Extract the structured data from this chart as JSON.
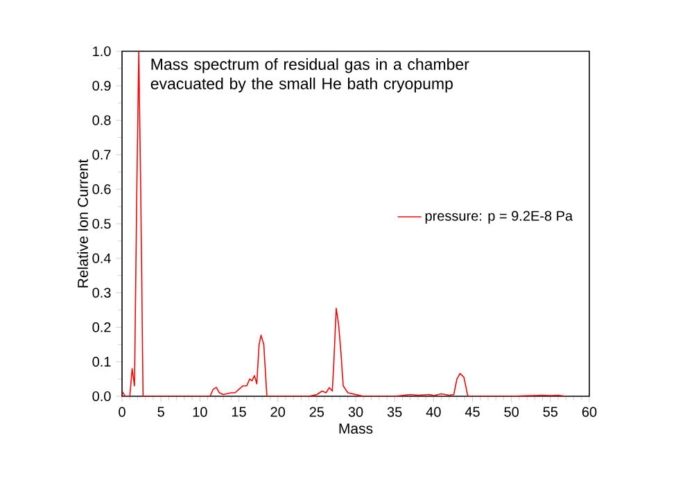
{
  "chart_data": {
    "type": "line",
    "title": "Mass spectrum of residual gas in a chamber evacuated by the small He bath cryopump",
    "xlabel": "Mass",
    "ylabel": "Relative Ion Current",
    "xlim": [
      0,
      60
    ],
    "xticks": [
      0,
      5,
      10,
      15,
      20,
      25,
      30,
      35,
      40,
      45,
      50,
      55,
      60
    ],
    "ylim": [
      0,
      1.0
    ],
    "yticks": [
      {
        "value": 0,
        "label": "0.0"
      },
      {
        "value": 0.1,
        "label": "0.1"
      },
      {
        "value": 0.2,
        "label": "0.2"
      },
      {
        "value": 0.3,
        "label": "0.3"
      },
      {
        "value": 0.4,
        "label": "0.4"
      },
      {
        "value": 0.5,
        "label": "0.5"
      },
      {
        "value": 0.6,
        "label": "0.6"
      },
      {
        "value": 0.7,
        "label": "0.7"
      },
      {
        "value": 0.8,
        "label": "0.8"
      },
      {
        "value": 0.9,
        "label": "0.9"
      },
      {
        "value": 1.0,
        "label": "1.0"
      }
    ],
    "legend": "right",
    "marker": "none",
    "line_style": "solid",
    "grid": false,
    "series": [
      {
        "name": "pressure:  p = 9.2E-8 Pa",
        "color": "#ff0000",
        "x": [
          0,
          0.4,
          1.0,
          1.3,
          1.6,
          1.9,
          2.15,
          2.4,
          2.7,
          11.3,
          11.7,
          12.1,
          12.5,
          13,
          14,
          14.5,
          15,
          15.5,
          16,
          16.4,
          16.7,
          17.0,
          17.3,
          17.6,
          17.85,
          18.2,
          18.6,
          24,
          25,
          25.7,
          26.2,
          26.6,
          27.0,
          27.2,
          27.5,
          27.8,
          28.1,
          28.4,
          29,
          30,
          31,
          35,
          37,
          38,
          39.5,
          40,
          41,
          42,
          42.6,
          43.0,
          43.4,
          43.9,
          44.4,
          50,
          54,
          55,
          56,
          57
        ],
        "values": [
          0.015,
          0,
          0,
          0.08,
          0.03,
          0.6,
          1.0,
          0.6,
          0,
          0,
          0.02,
          0.026,
          0.01,
          0.005,
          0.01,
          0.01,
          0.02,
          0.03,
          0.03,
          0.05,
          0.045,
          0.06,
          0.036,
          0.15,
          0.177,
          0.15,
          0,
          0,
          0.005,
          0.015,
          0.01,
          0.025,
          0.015,
          0.1,
          0.255,
          0.21,
          0.13,
          0.03,
          0.01,
          0.005,
          0,
          0,
          0.005,
          0.003,
          0.005,
          0.002,
          0.007,
          0.003,
          0.005,
          0.05,
          0.066,
          0.055,
          0,
          0,
          0.003,
          0.002,
          0.003,
          0
        ]
      }
    ]
  }
}
